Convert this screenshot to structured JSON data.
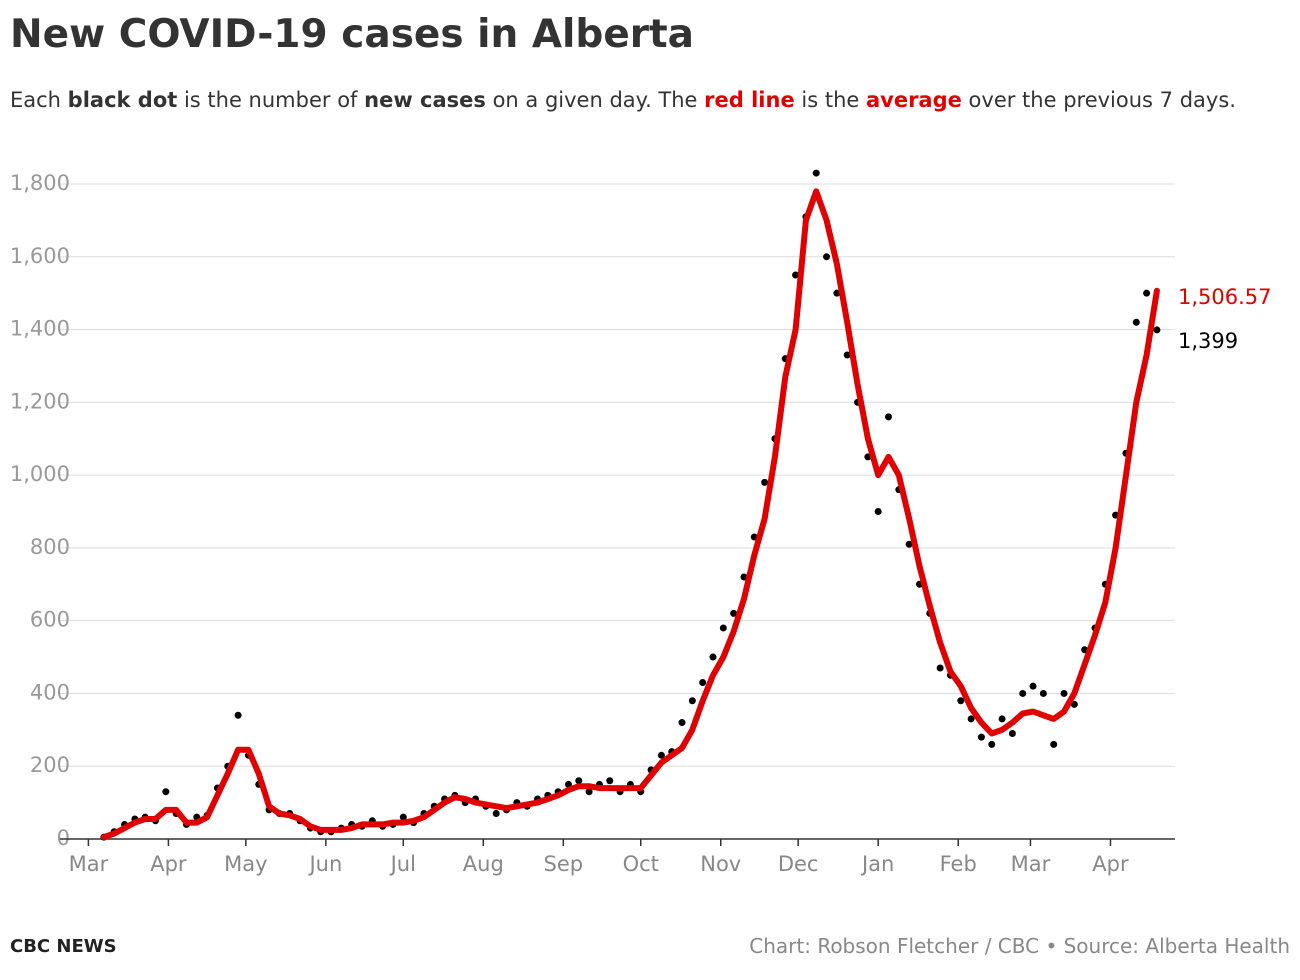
{
  "chart_data": {
    "type": "scatter",
    "title": "New COVID-19 cases in Alberta",
    "subtitle": [
      "Each ",
      "black dot",
      " is the number of ",
      "new cases",
      " on a given day. The ",
      "red line",
      " is the ",
      "average",
      " over the previous 7 days."
    ],
    "brand": "CBC NEWS",
    "credit": "Chart: Robson Fletcher / CBC • Source: Alberta Health",
    "x": [
      6,
      10,
      14,
      18,
      22,
      26,
      30,
      34,
      38,
      42,
      46,
      50,
      54,
      58,
      62,
      66,
      70,
      74,
      78,
      82,
      86,
      90,
      94,
      98,
      102,
      106,
      110,
      114,
      118,
      122,
      126,
      130,
      134,
      138,
      142,
      146,
      150,
      154,
      158,
      162,
      166,
      170,
      174,
      178,
      182,
      186,
      190,
      194,
      198,
      202,
      206,
      210,
      214,
      218,
      222,
      226,
      230,
      234,
      238,
      242,
      246,
      250,
      254,
      258,
      262,
      266,
      270,
      274,
      278,
      282,
      286,
      290,
      294,
      298,
      302,
      306,
      310,
      314,
      318,
      322,
      326,
      330,
      334,
      338,
      342,
      346,
      350,
      354,
      358,
      362,
      366,
      370,
      374,
      378,
      382,
      386,
      390,
      394,
      398,
      402,
      406,
      410,
      414
    ],
    "series": [
      {
        "type": "scatter",
        "color": "#000000",
        "values": [
          5,
          20,
          40,
          55,
          60,
          50,
          130,
          70,
          40,
          60,
          65,
          140,
          200,
          340,
          230,
          150,
          80,
          70,
          70,
          50,
          30,
          20,
          20,
          30,
          40,
          35,
          50,
          35,
          40,
          60,
          45,
          70,
          90,
          110,
          120,
          100,
          110,
          90,
          70,
          80,
          100,
          90,
          110,
          120,
          130,
          150,
          160,
          130,
          150,
          160,
          130,
          150,
          130,
          190,
          230,
          240,
          320,
          380,
          430,
          500,
          580,
          620,
          720,
          830,
          980,
          1100,
          1320,
          1550,
          1710,
          1830,
          1600,
          1500,
          1330,
          1200,
          1050,
          900,
          1160,
          960,
          810,
          700,
          620,
          470,
          450,
          380,
          330,
          280,
          260,
          330,
          290,
          400,
          420,
          400,
          260,
          400,
          370,
          520,
          580,
          700,
          890,
          1060,
          1420,
          1500,
          1399
        ],
        "value_labels": [
          null,
          null,
          null,
          null,
          null,
          null,
          null,
          null,
          null,
          null,
          null,
          null,
          null,
          null,
          null,
          null,
          null,
          null,
          null,
          null,
          null,
          null,
          null,
          null,
          null,
          null,
          null,
          null,
          null,
          null,
          null,
          null,
          null,
          null,
          null,
          null,
          null,
          null,
          null,
          null,
          null,
          null,
          null,
          null,
          null,
          null,
          null,
          null,
          null,
          null,
          null,
          null,
          null,
          null,
          null,
          null,
          null,
          null,
          null,
          null,
          null,
          null,
          null,
          null,
          null,
          null,
          null,
          null,
          null,
          null,
          null,
          null,
          null,
          null,
          null,
          null,
          null,
          null,
          null,
          null,
          null,
          null,
          null,
          null,
          null,
          null,
          null,
          null,
          null,
          null,
          null,
          null,
          null,
          null,
          null,
          null,
          null,
          null,
          null,
          null,
          null,
          null,
          "1,399"
        ]
      },
      {
        "type": "line",
        "color": "#e00000",
        "values": [
          5,
          15,
          30,
          45,
          55,
          55,
          80,
          80,
          45,
          45,
          60,
          120,
          180,
          245,
          245,
          180,
          90,
          70,
          65,
          55,
          35,
          25,
          25,
          25,
          30,
          40,
          40,
          40,
          45,
          45,
          50,
          60,
          80,
          100,
          115,
          110,
          100,
          95,
          90,
          85,
          90,
          95,
          100,
          110,
          120,
          135,
          145,
          145,
          140,
          140,
          140,
          140,
          140,
          175,
          210,
          230,
          250,
          300,
          380,
          450,
          500,
          570,
          660,
          780,
          880,
          1050,
          1270,
          1400,
          1700,
          1780,
          1700,
          1580,
          1420,
          1250,
          1100,
          1000,
          1050,
          1000,
          880,
          750,
          640,
          540,
          460,
          420,
          360,
          320,
          290,
          300,
          320,
          345,
          350,
          340,
          330,
          350,
          400,
          480,
          560,
          650,
          800,
          1000,
          1200,
          1330,
          1506.57
        ],
        "value_labels": [
          null,
          null,
          null,
          null,
          null,
          null,
          null,
          null,
          null,
          null,
          null,
          null,
          null,
          null,
          null,
          null,
          null,
          null,
          null,
          null,
          null,
          null,
          null,
          null,
          null,
          null,
          null,
          null,
          null,
          null,
          null,
          null,
          null,
          null,
          null,
          null,
          null,
          null,
          null,
          null,
          null,
          null,
          null,
          null,
          null,
          null,
          null,
          null,
          null,
          null,
          null,
          null,
          null,
          null,
          null,
          null,
          null,
          null,
          null,
          null,
          null,
          null,
          null,
          null,
          null,
          null,
          null,
          null,
          null,
          null,
          null,
          null,
          null,
          null,
          null,
          null,
          null,
          null,
          null,
          null,
          null,
          null,
          null,
          null,
          null,
          null,
          null,
          null,
          null,
          null,
          null,
          null,
          null,
          null,
          null,
          null,
          null,
          null,
          null,
          null,
          null,
          null,
          "1,506.57"
        ]
      }
    ],
    "xlim": [
      -11,
      421
    ],
    "xticks": [
      {
        "value": 0,
        "label": "Mar"
      },
      {
        "value": 31,
        "label": "Apr"
      },
      {
        "value": 61,
        "label": "May"
      },
      {
        "value": 92,
        "label": "Jun"
      },
      {
        "value": 122,
        "label": "Jul"
      },
      {
        "value": 153,
        "label": "Aug"
      },
      {
        "value": 184,
        "label": "Sep"
      },
      {
        "value": 214,
        "label": "Oct"
      },
      {
        "value": 245,
        "label": "Nov"
      },
      {
        "value": 275,
        "label": "Dec"
      },
      {
        "value": 306,
        "label": "Jan"
      },
      {
        "value": 337,
        "label": "Feb"
      },
      {
        "value": 365,
        "label": "Mar"
      },
      {
        "value": 396,
        "label": "Apr"
      }
    ],
    "ylim": [
      0,
      1800
    ],
    "yticks": [
      0,
      200,
      400,
      600,
      800,
      {
        "value": 1000,
        "label": "1,000"
      },
      {
        "value": 1200,
        "label": "1,200"
      },
      {
        "value": 1400,
        "label": "1,400"
      },
      {
        "value": 1600,
        "label": "1,600"
      },
      {
        "value": 1800,
        "label": "1,800"
      }
    ],
    "grid": true
  }
}
